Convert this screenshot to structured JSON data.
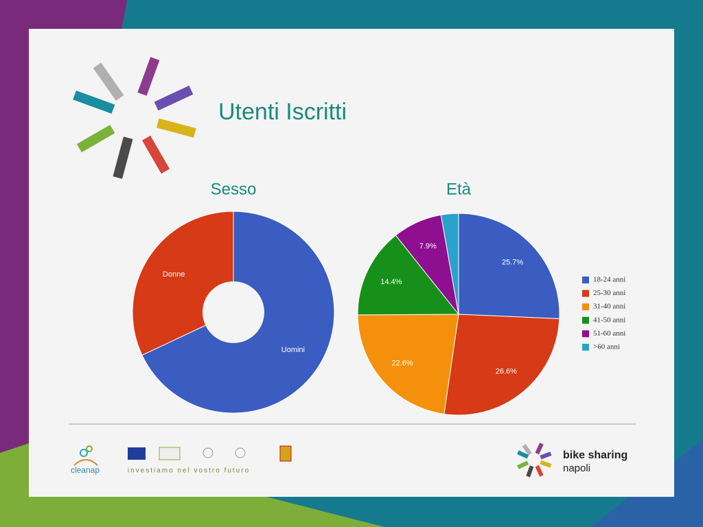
{
  "title": "Utenti Iscritti",
  "footer": {
    "partner": "cleanap",
    "slogan": "investiamo nel vostro futuro",
    "brand": "bike sharing",
    "city": "napoli"
  },
  "chart_data": [
    {
      "type": "pie",
      "title": "Sesso",
      "categories": [
        "Uomini",
        "Donne"
      ],
      "values": [
        68,
        32
      ],
      "colors": [
        "#3b5cc0",
        "#d63a17"
      ],
      "donut": true,
      "labels": "categories"
    },
    {
      "type": "pie",
      "title": "Età",
      "categories": [
        "18-24 anni",
        "25-30 anni",
        "31-40 anni",
        "41-50 anni",
        "51-60 anni",
        ">60 anni"
      ],
      "values": [
        25.7,
        26.6,
        22.6,
        14.4,
        7.9,
        2.8
      ],
      "value_labels": [
        "25.7%",
        "26.6%",
        "22.6%",
        "14.4%",
        "7.9%",
        null
      ],
      "colors": [
        "#3b5cc0",
        "#d63a17",
        "#f5900c",
        "#17901a",
        "#8e0f8f",
        "#2aa2cc"
      ],
      "donut": false,
      "labels": "value_labels",
      "legend": "right"
    }
  ]
}
